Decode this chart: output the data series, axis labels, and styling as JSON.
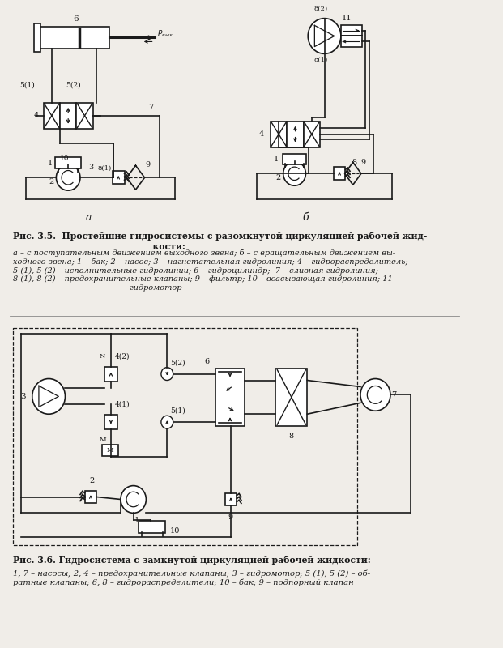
{
  "bg_color": "#f0ede8",
  "line_color": "#1a1a1a",
  "fig_caption1_bold": "Рис. 3.5.  Простейшие гидросистемы с разомкнутой циркуляцией рабочей жид-\n                                              кости:",
  "fig_caption1_italic": "а – с поступательным движением выходного звена; б – с вращательным движением вы-\nходного звена; 1 – бак; 2 – насос; 3 – нагнетательная гидролиния; 4 – гидрораспределитель;\n5 (1), 5 (2) – исполнительные гидролинии; 6 – гидроцилиндр;  7 – сливная гидролиния;\n8 (1), 8 (2) – предохранительные клапаны; 9 – фильтр; 10 – всасывающая гидролиния; 11 –\n                                              гидромотор",
  "fig_caption2_bold": "Рис. 3.6. Гидросистема с замкнутой циркуляцией рабочей жидкости:",
  "fig_caption2_italic": "1, 7 – насосы; 2, 4 – предохранительные клапаны; 3 – гидромотор; 5 (1), 5 (2) – об-\nратные клапаны; 6, 8 – гидрораспределители; 10 – бак; 9 – подпорный клапан"
}
